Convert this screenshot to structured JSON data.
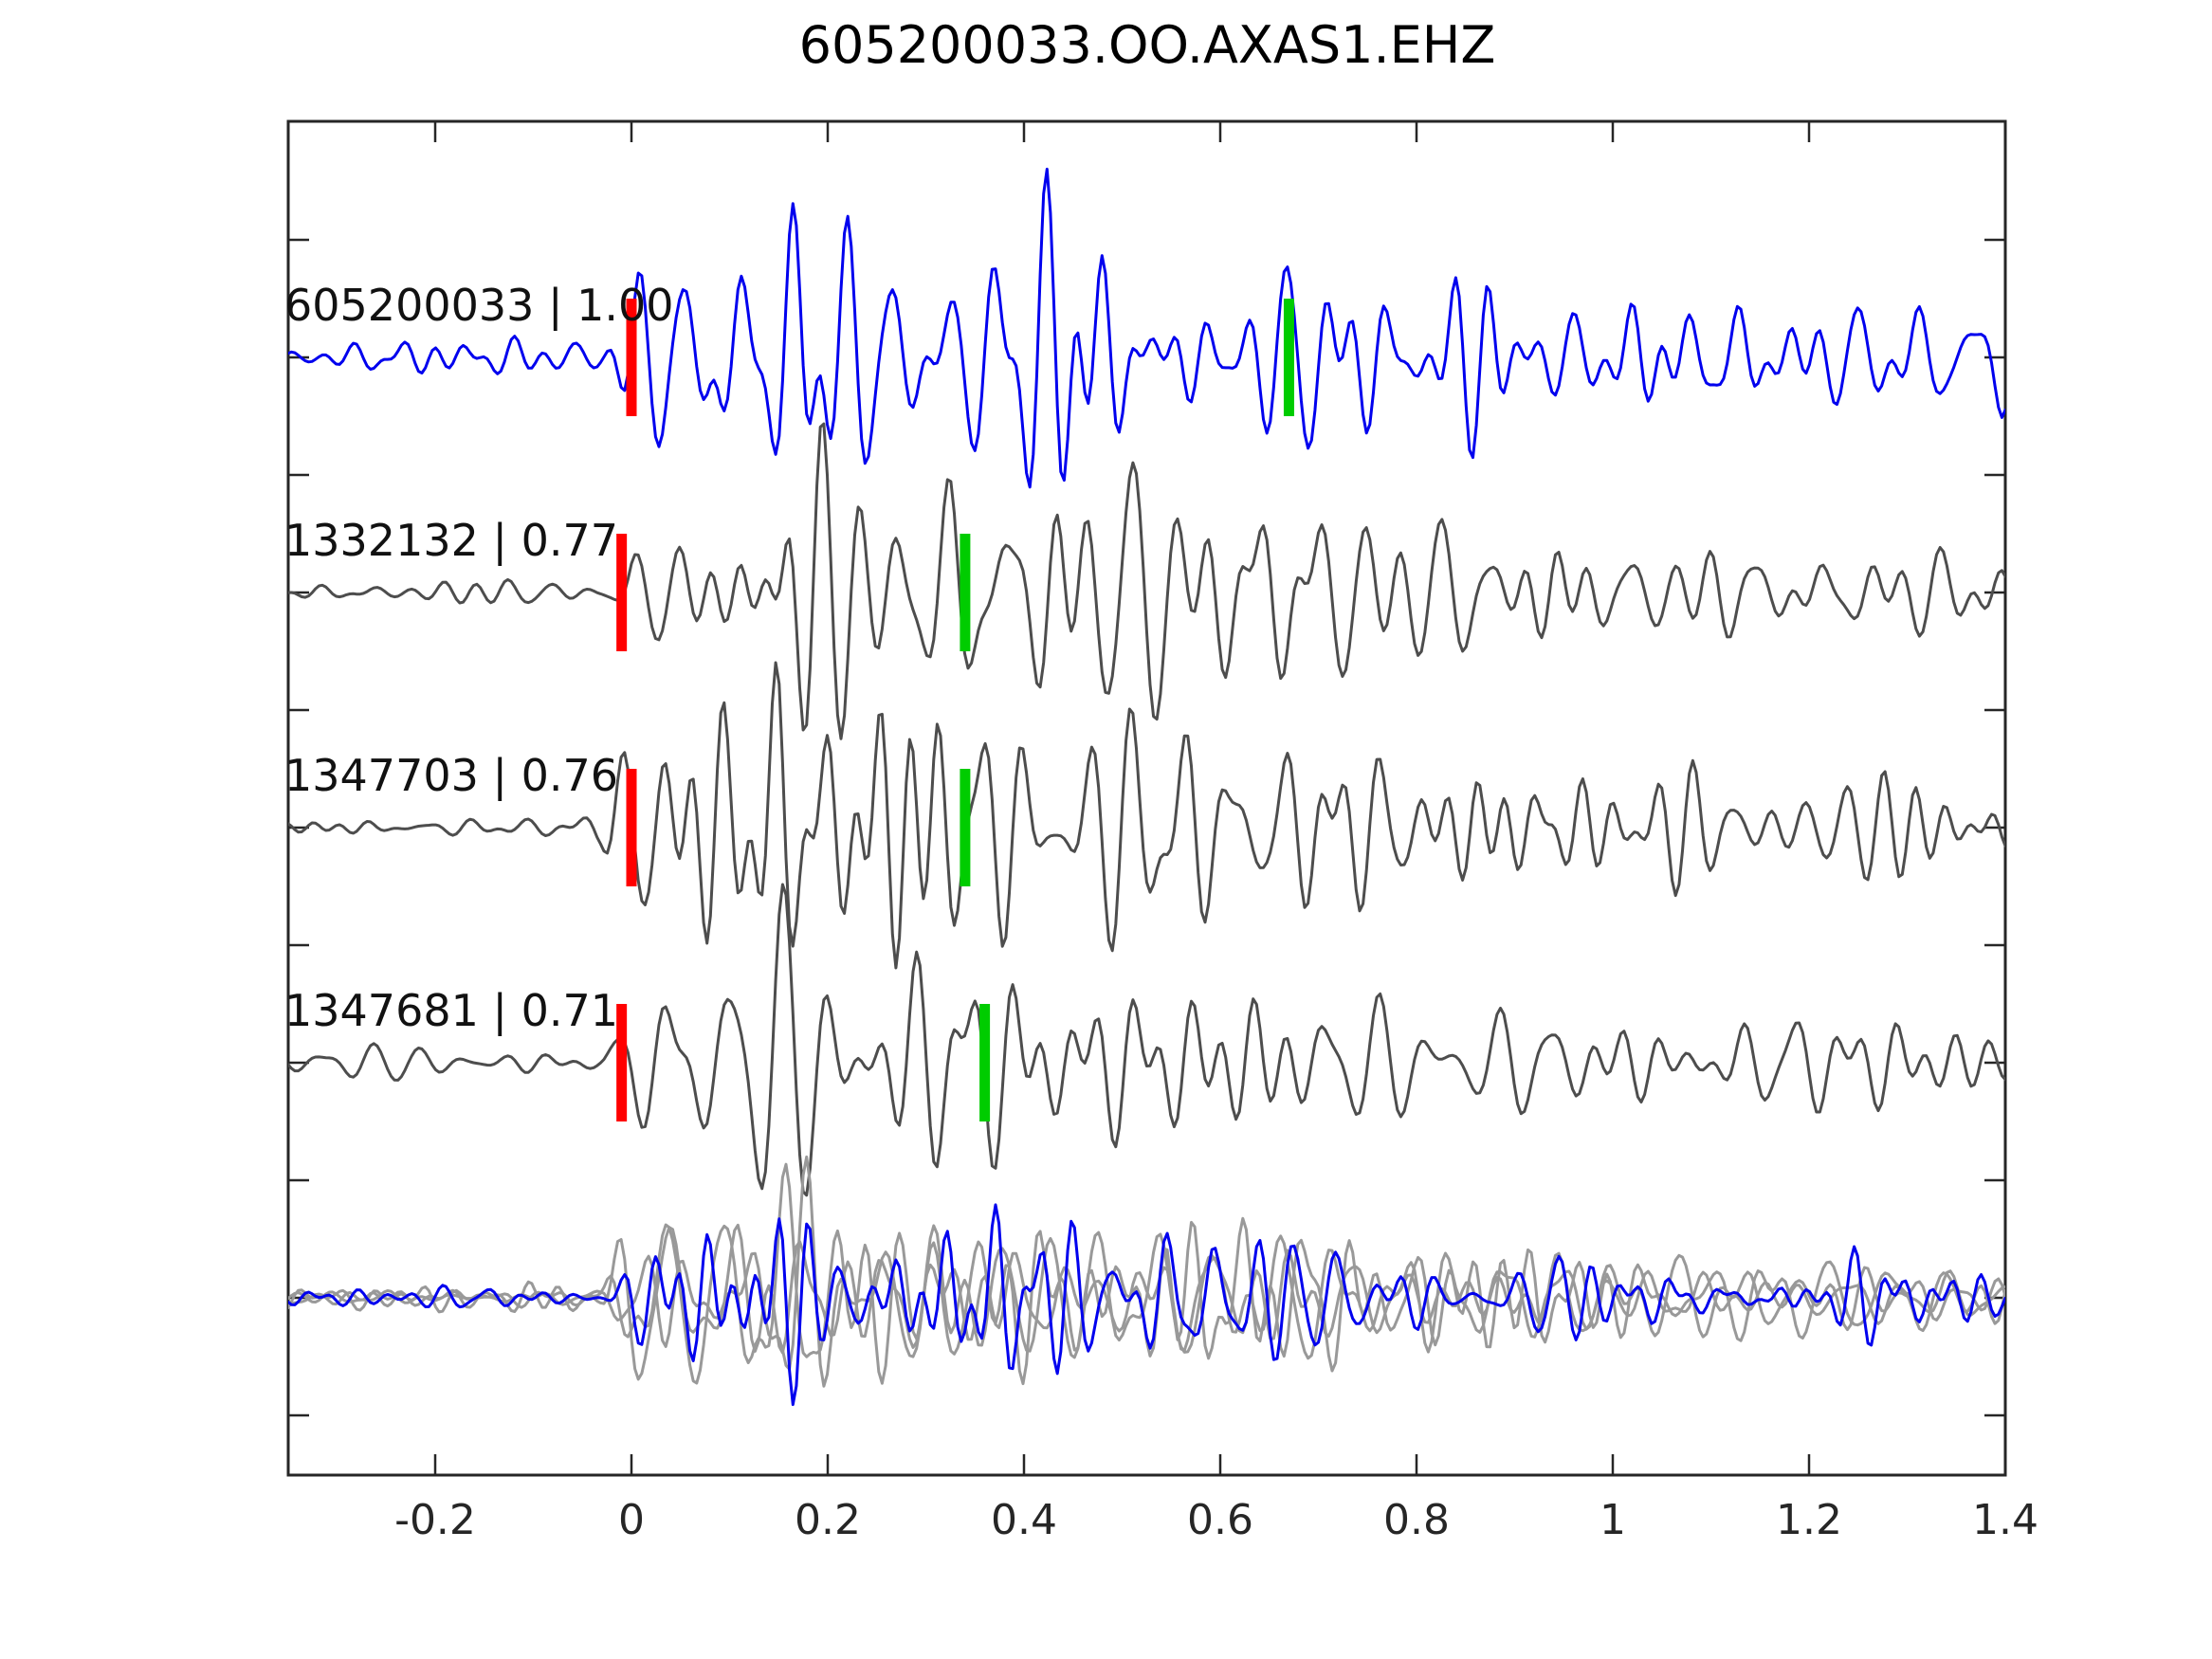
{
  "title": "605200033.OO.AXAS1.EHZ",
  "colors": {
    "template_trace": "#0000ee",
    "candidate_trace": "#4d4d4d",
    "overlay_trace": "#999999",
    "pick_red": "#ff0000",
    "pick_green": "#00cc00",
    "axis": "#262626",
    "background": "#ffffff"
  },
  "chart_data": {
    "type": "line",
    "subtype": "seismic-waveform-stack",
    "title": "605200033.OO.AXAS1.EHZ",
    "xlabel": "",
    "ylabel": "",
    "x_range": [
      -0.35,
      1.4
    ],
    "x_ticks": {
      "values": [
        -0.2,
        0,
        0.2,
        0.4,
        0.6,
        0.8,
        1,
        1.2,
        1.4
      ],
      "labels": [
        "-0.2",
        "0",
        "0.2",
        "0.4",
        "0.6",
        "0.8",
        "1",
        "1.2",
        "1.4"
      ]
    },
    "grid": false,
    "legend": false,
    "traces": [
      {
        "id": "605200033",
        "score": "1.00",
        "label": "605200033 | 1.00",
        "color": "#0000ee",
        "red_pick_t": 0.0,
        "green_pick_t": 0.67,
        "amp": 190,
        "seed": 101,
        "freq": [
          16,
          46
        ],
        "envelope": [
          [
            -0.35,
            0.17
          ],
          [
            -0.03,
            0.15
          ],
          [
            0.0,
            0.52
          ],
          [
            0.05,
            0.62
          ],
          [
            0.09,
            0.95
          ],
          [
            0.13,
            0.7
          ],
          [
            0.17,
            1.0
          ],
          [
            0.22,
            0.85
          ],
          [
            0.28,
            0.75
          ],
          [
            0.34,
            0.9
          ],
          [
            0.4,
            0.95
          ],
          [
            0.47,
            0.9
          ],
          [
            0.52,
            0.95
          ],
          [
            0.58,
            0.8
          ],
          [
            0.63,
            0.75
          ],
          [
            0.68,
            0.8
          ],
          [
            0.73,
            0.65
          ],
          [
            0.78,
            0.45
          ],
          [
            0.85,
            0.6
          ],
          [
            0.92,
            0.55
          ],
          [
            1.0,
            0.45
          ],
          [
            1.08,
            0.35
          ],
          [
            1.15,
            0.42
          ],
          [
            1.25,
            0.5
          ],
          [
            1.32,
            0.45
          ],
          [
            1.4,
            0.35
          ]
        ]
      },
      {
        "id": "1332132",
        "score": "0.77",
        "label": "1332132 | 0.77",
        "color": "#4d4d4d",
        "red_pick_t": -0.01,
        "green_pick_t": 0.34,
        "amp": 205,
        "seed": 202,
        "freq": [
          13,
          38
        ],
        "envelope": [
          [
            -0.35,
            0.09
          ],
          [
            -0.03,
            0.08
          ],
          [
            0.0,
            0.5
          ],
          [
            0.04,
            0.55
          ],
          [
            0.1,
            0.6
          ],
          [
            0.16,
            1.0
          ],
          [
            0.2,
            0.75
          ],
          [
            0.25,
            0.85
          ],
          [
            0.3,
            0.7
          ],
          [
            0.36,
            0.75
          ],
          [
            0.42,
            0.7
          ],
          [
            0.5,
            0.6
          ],
          [
            0.58,
            0.65
          ],
          [
            0.65,
            0.55
          ],
          [
            0.72,
            0.5
          ],
          [
            0.8,
            0.45
          ],
          [
            0.9,
            0.4
          ],
          [
            1.0,
            0.35
          ],
          [
            1.1,
            0.3
          ],
          [
            1.2,
            0.32
          ],
          [
            1.3,
            0.3
          ],
          [
            1.4,
            0.33
          ]
        ]
      },
      {
        "id": "1347703",
        "score": "0.76",
        "label": "1347703 | 0.76",
        "color": "#4d4d4d",
        "red_pick_t": 0.0,
        "green_pick_t": 0.34,
        "amp": 200,
        "seed": 303,
        "freq": [
          13,
          38
        ],
        "envelope": [
          [
            -0.35,
            0.1
          ],
          [
            -0.03,
            0.1
          ],
          [
            0.0,
            0.55
          ],
          [
            0.05,
            0.7
          ],
          [
            0.1,
            0.65
          ],
          [
            0.15,
            1.0
          ],
          [
            0.2,
            0.8
          ],
          [
            0.27,
            0.9
          ],
          [
            0.33,
            0.85
          ],
          [
            0.4,
            0.8
          ],
          [
            0.47,
            0.7
          ],
          [
            0.55,
            0.75
          ],
          [
            0.62,
            0.6
          ],
          [
            0.7,
            0.55
          ],
          [
            0.78,
            0.5
          ],
          [
            0.88,
            0.45
          ],
          [
            0.98,
            0.4
          ],
          [
            1.1,
            0.3
          ],
          [
            1.2,
            0.28
          ],
          [
            1.3,
            0.32
          ],
          [
            1.4,
            0.3
          ]
        ]
      },
      {
        "id": "1347681",
        "score": "0.71",
        "label": "1347681 | 0.71",
        "color": "#4d4d4d",
        "red_pick_t": -0.01,
        "green_pick_t": 0.36,
        "amp": 200,
        "seed": 404,
        "freq": [
          13,
          38
        ],
        "envelope": [
          [
            -0.35,
            0.09
          ],
          [
            -0.03,
            0.09
          ],
          [
            0.0,
            0.6
          ],
          [
            0.05,
            0.75
          ],
          [
            0.1,
            0.7
          ],
          [
            0.15,
            1.0
          ],
          [
            0.2,
            0.7
          ],
          [
            0.27,
            0.6
          ],
          [
            0.33,
            0.55
          ],
          [
            0.4,
            0.5
          ],
          [
            0.5,
            0.45
          ],
          [
            0.6,
            0.4
          ],
          [
            0.7,
            0.42
          ],
          [
            0.8,
            0.35
          ],
          [
            0.9,
            0.35
          ],
          [
            1.0,
            0.3
          ],
          [
            1.1,
            0.25
          ],
          [
            1.25,
            0.28
          ],
          [
            1.4,
            0.25
          ]
        ]
      }
    ],
    "overlay": {
      "description": "all traces aligned and superimposed",
      "components": [
        {
          "color": "#999999",
          "seed": 202,
          "freq": [
            14,
            40
          ],
          "amp": 150,
          "envelope_from": 1
        },
        {
          "color": "#999999",
          "seed": 303,
          "freq": [
            14,
            40
          ],
          "amp": 150,
          "envelope_from": 2
        },
        {
          "color": "#999999",
          "seed": 404,
          "freq": [
            14,
            40
          ],
          "amp": 150,
          "envelope_from": 3
        },
        {
          "color": "#0000ee",
          "seed": 101,
          "freq": [
            15,
            42
          ],
          "amp": 155,
          "envelope_from": 1
        }
      ]
    }
  }
}
